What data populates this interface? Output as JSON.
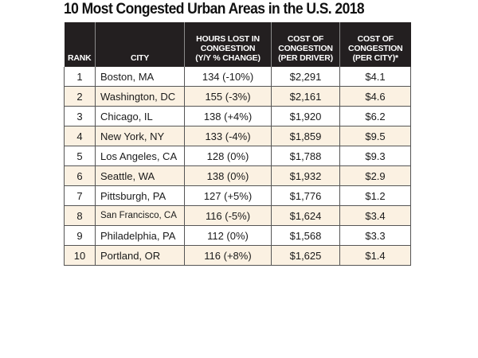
{
  "title": "10 Most Congested Urban Areas in the U.S. 2018",
  "colors": {
    "header_bg": "#231f20",
    "header_text": "#ffffff",
    "shaded_row": "#fbf1e2",
    "plain_row": "#ffffff"
  },
  "chart_data": {
    "type": "table",
    "title": "10 Most Congested Urban Areas in the U.S. 2018",
    "columns": [
      "RANK",
      "CITY",
      "HOURS LOST IN CONGESTION (Y/Y % CHANGE)",
      "COST OF CONGESTION (PER DRIVER)",
      "COST OF CONGESTION (PER CITY)*"
    ],
    "header_lines": [
      [
        "RANK"
      ],
      [
        "CITY"
      ],
      [
        "HOURS LOST IN",
        "CONGESTION",
        "(Y/Y % CHANGE)"
      ],
      [
        "COST OF",
        "CONGESTION",
        "(PER DRIVER)"
      ],
      [
        "COST OF",
        "CONGESTION",
        "(PER CITY)*"
      ]
    ],
    "rows": [
      {
        "rank": "1",
        "city": "Boston, MA",
        "hours": "134 (-10%)",
        "cost_driver": "$2,291",
        "cost_city": "$4.1"
      },
      {
        "rank": "2",
        "city": "Washington, DC",
        "hours": "155 (-3%)",
        "cost_driver": "$2,161",
        "cost_city": "$4.6"
      },
      {
        "rank": "3",
        "city": "Chicago, IL",
        "hours": "138 (+4%)",
        "cost_driver": "$1,920",
        "cost_city": "$6.2"
      },
      {
        "rank": "4",
        "city": "New York, NY",
        "hours": "133 (-4%)",
        "cost_driver": "$1,859",
        "cost_city": "$9.5"
      },
      {
        "rank": "5",
        "city": "Los Angeles, CA",
        "hours": "128 (0%)",
        "cost_driver": "$1,788",
        "cost_city": "$9.3"
      },
      {
        "rank": "6",
        "city": "Seattle, WA",
        "hours": "138 (0%)",
        "cost_driver": "$1,932",
        "cost_city": "$2.9"
      },
      {
        "rank": "7",
        "city": "Pittsburgh, PA",
        "hours": "127 (+5%)",
        "cost_driver": "$1,776",
        "cost_city": "$1.2"
      },
      {
        "rank": "8",
        "city": "San Francisco, CA",
        "hours": "116 (-5%)",
        "cost_driver": "$1,624",
        "cost_city": "$3.4"
      },
      {
        "rank": "9",
        "city": "Philadelphia, PA",
        "hours": "112 (0%)",
        "cost_driver": "$1,568",
        "cost_city": "$3.3"
      },
      {
        "rank": "10",
        "city": "Portland, OR",
        "hours": "116 (+8%)",
        "cost_driver": "$1,625",
        "cost_city": "$1.4"
      }
    ]
  }
}
